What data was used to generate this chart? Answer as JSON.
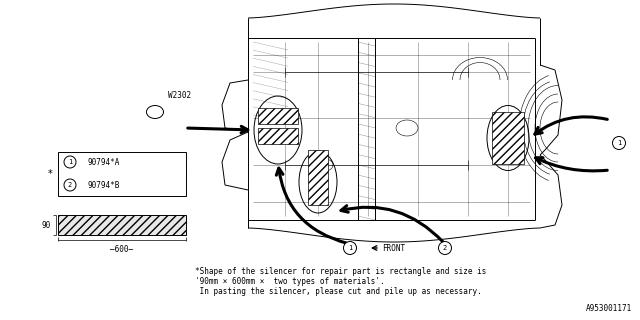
{
  "bg_color": "#ffffff",
  "line_color": "#000000",
  "footnote_line1": "*Shape of the silencer for repair part is rectangle and size is",
  "footnote_line2": "'90mm × 600mm ×  two types of materials'.",
  "footnote_line3": " In pasting the silencer, please cut and pile up as necessary.",
  "diagram_id": "A953001171",
  "w2302_label": "W2302",
  "front_label": "FRONT",
  "part1_label": "90794*A",
  "part2_label": "90794*B",
  "dim_width": "600",
  "dim_height": "90"
}
